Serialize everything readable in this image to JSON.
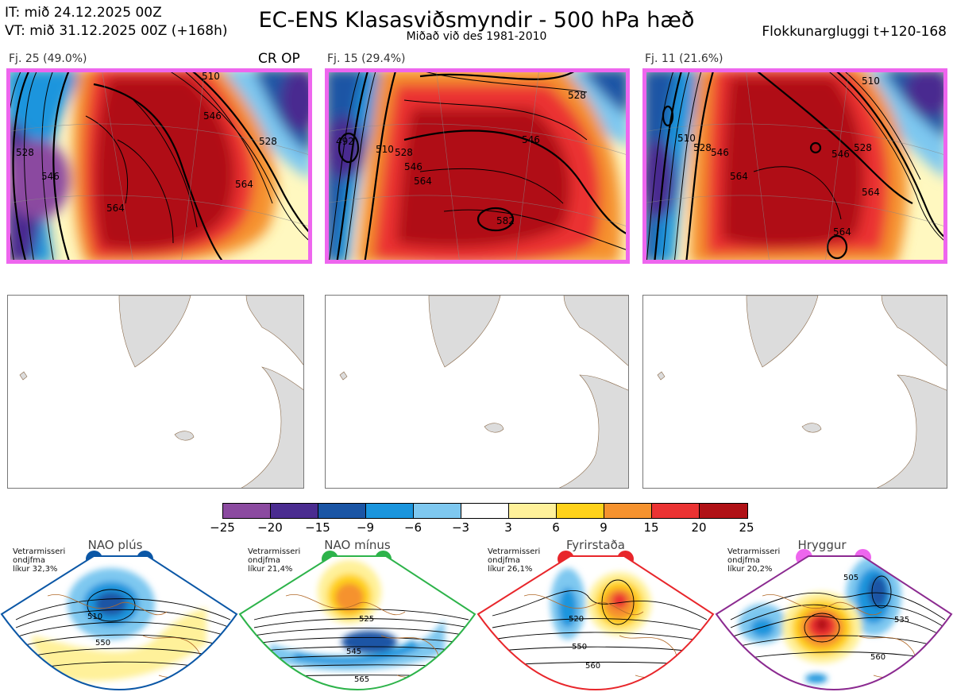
{
  "header": {
    "it_line": "IT: mið 24.12.2025 00Z",
    "vt_line": "VT: mið 31.12.2025 00Z  (+168h)",
    "title": "EC-ENS Klasasviðsmyndir - 500 hPa hæð",
    "subtitle": "Miðað við des 1981-2010",
    "window": "Flokkunargluggi t+120-168"
  },
  "clusters": [
    {
      "label": "Fj. 25 (49.0%)",
      "tag": "CR OP",
      "contours": [
        "510",
        "528",
        "546",
        "564",
        "528",
        "546",
        "564"
      ]
    },
    {
      "label": "Fj. 15 (29.4%)",
      "tag": "",
      "contours": [
        "492",
        "510",
        "528",
        "546",
        "564",
        "582",
        "528",
        "546"
      ]
    },
    {
      "label": "Fj. 11 (21.6%)",
      "tag": "",
      "contours": [
        "510",
        "528",
        "546",
        "564",
        "528",
        "546",
        "564",
        "564",
        "510"
      ]
    }
  ],
  "colorbar": {
    "ticks": [
      "−25",
      "−20",
      "−15",
      "−9",
      "−6",
      "−3",
      "3",
      "6",
      "9",
      "15",
      "20",
      "25"
    ],
    "colors": [
      "#8b4aa0",
      "#4a2c90",
      "#1a55a5",
      "#1a95dd",
      "#7ec8f0",
      "#ffffff",
      "#fff19a",
      "#ffd21a",
      "#f5922e",
      "#eb3333",
      "#b01116"
    ]
  },
  "regimes": [
    {
      "title": "NAO plús",
      "note1": "Vetrarmisseri",
      "note2": "ondjfma",
      "note3": "líkur 32,3%",
      "color": "#0b57a6",
      "labels": [
        "510",
        "550"
      ]
    },
    {
      "title": "NAO mínus",
      "note1": "Vetrarmisseri",
      "note2": "ondjfma",
      "note3": "líkur 21,4%",
      "color": "#2db34a",
      "labels": [
        "525",
        "545",
        "565"
      ]
    },
    {
      "title": "Fyrirstaða",
      "note1": "Vetrarmisseri",
      "note2": "ondjfma",
      "note3": "líkur 26,1%",
      "color": "#e8262b",
      "labels": [
        "520",
        "550",
        "560"
      ]
    },
    {
      "title": "Hryggur",
      "note1": "Vetrarmisseri",
      "note2": "ondjfma",
      "note3": "líkur 20,2%",
      "color": "#ee66ee",
      "labels": [
        "505",
        "535",
        "560"
      ]
    }
  ]
}
